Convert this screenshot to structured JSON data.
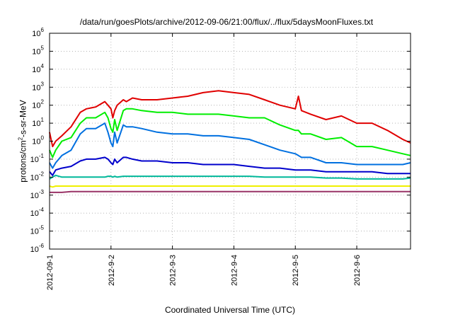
{
  "chart_data": {
    "type": "line",
    "title": "/data/run/goesPlots/archive/2012-09-06/21:00/flux/../flux/5daysMoonFluxes.txt",
    "xlabel": "Coordinated Universal Time (UTC)",
    "ylabel": "protons/cm²-s-sr-MeV",
    "yscale": "log",
    "ylim": [
      -6,
      6
    ],
    "xlim": [
      "2012-09-01",
      "2012-09-06 21:00"
    ],
    "x_ticks": [
      "2012-09-1",
      "2012-9-2",
      "2012-9-3",
      "2012-9-4",
      "2012-9-5",
      "2012-9-6"
    ],
    "y_ticks": [
      "10-6",
      "10-5",
      "10-4",
      "10-3",
      "10-2",
      "10-1",
      "100",
      "101",
      "102",
      "103",
      "104",
      "105",
      "106"
    ],
    "grid": true,
    "x_days": [
      0,
      0.05,
      0.1,
      0.2,
      0.35,
      0.5,
      0.6,
      0.75,
      0.9,
      0.95,
      1.0,
      1.03,
      1.06,
      1.1,
      1.2,
      1.25,
      1.35,
      1.5,
      1.75,
      2.0,
      2.25,
      2.5,
      2.75,
      3.0,
      3.25,
      3.5,
      3.75,
      4.0,
      4.05,
      4.1,
      4.25,
      4.5,
      4.75,
      5.0,
      5.25,
      5.5,
      5.75,
      5.875
    ],
    "series": [
      {
        "color": "#e00000",
        "values": [
          0.5,
          -0.3,
          0.0,
          0.3,
          0.8,
          1.6,
          1.8,
          1.9,
          2.2,
          2.0,
          1.8,
          1.3,
          1.7,
          2.0,
          2.3,
          2.2,
          2.4,
          2.3,
          2.3,
          2.4,
          2.5,
          2.7,
          2.8,
          2.7,
          2.6,
          2.3,
          2.0,
          1.8,
          2.5,
          1.7,
          1.5,
          1.2,
          1.4,
          1.0,
          1.0,
          0.6,
          0.1,
          -0.1
        ]
      },
      {
        "color": "#00ee00",
        "values": [
          -0.5,
          -0.9,
          -0.5,
          0.0,
          0.2,
          1.0,
          1.3,
          1.3,
          1.6,
          1.3,
          0.7,
          0.5,
          1.2,
          0.6,
          1.7,
          1.8,
          1.8,
          1.7,
          1.6,
          1.6,
          1.5,
          1.5,
          1.5,
          1.4,
          1.3,
          1.3,
          0.9,
          0.6,
          0.6,
          0.4,
          0.4,
          0.1,
          0.2,
          -0.3,
          -0.3,
          -0.5,
          -0.7,
          -0.8
        ]
      },
      {
        "color": "#0070e0",
        "values": [
          -1.2,
          -1.5,
          -1.2,
          -0.8,
          -0.5,
          0.4,
          0.7,
          0.7,
          1.0,
          0.5,
          -0.1,
          -0.3,
          0.5,
          -0.1,
          0.9,
          0.8,
          0.8,
          0.7,
          0.5,
          0.4,
          0.4,
          0.3,
          0.3,
          0.2,
          0.1,
          -0.2,
          -0.5,
          -0.7,
          -0.8,
          -0.9,
          -0.9,
          -1.2,
          -1.2,
          -1.3,
          -1.3,
          -1.3,
          -1.3,
          -1.2
        ]
      },
      {
        "color": "#0000cc",
        "values": [
          -1.7,
          -1.9,
          -1.6,
          -1.5,
          -1.4,
          -1.1,
          -1.0,
          -1.0,
          -0.9,
          -1.0,
          -1.2,
          -1.3,
          -1.0,
          -1.2,
          -0.9,
          -0.9,
          -1.0,
          -1.1,
          -1.1,
          -1.2,
          -1.2,
          -1.3,
          -1.3,
          -1.3,
          -1.4,
          -1.5,
          -1.5,
          -1.6,
          -1.6,
          -1.6,
          -1.6,
          -1.7,
          -1.7,
          -1.7,
          -1.7,
          -1.8,
          -1.8,
          -1.8
        ]
      },
      {
        "color": "#00b89a",
        "values": [
          -2.1,
          -2.0,
          -1.9,
          -2.0,
          -2.0,
          -2.0,
          -2.0,
          -2.0,
          -2.0,
          -1.95,
          -1.95,
          -2.0,
          -1.95,
          -2.0,
          -1.95,
          -1.95,
          -1.95,
          -1.95,
          -1.95,
          -1.95,
          -1.95,
          -1.95,
          -1.95,
          -1.95,
          -1.95,
          -2.0,
          -2.0,
          -2.0,
          -2.0,
          -2.0,
          -2.0,
          -2.05,
          -2.05,
          -2.1,
          -2.1,
          -2.1,
          -2.1,
          -2.05
        ]
      },
      {
        "color": "#f0f000",
        "values": [
          -2.5,
          -2.55,
          -2.5,
          -2.5,
          -2.5,
          -2.5,
          -2.5,
          -2.5,
          -2.5,
          -2.5,
          -2.5,
          -2.5,
          -2.5,
          -2.5,
          -2.5,
          -2.5,
          -2.5,
          -2.5,
          -2.5,
          -2.5,
          -2.5,
          -2.5,
          -2.5,
          -2.5,
          -2.5,
          -2.5,
          -2.5,
          -2.5,
          -2.5,
          -2.5,
          -2.5,
          -2.5,
          -2.5,
          -2.5,
          -2.5,
          -2.5,
          -2.5,
          -2.5
        ]
      },
      {
        "color": "#993366",
        "values": [
          -2.85,
          -2.85,
          -2.85,
          -2.85,
          -2.8,
          -2.8,
          -2.8,
          -2.8,
          -2.8,
          -2.8,
          -2.8,
          -2.8,
          -2.8,
          -2.8,
          -2.8,
          -2.8,
          -2.8,
          -2.8,
          -2.8,
          -2.8,
          -2.8,
          -2.8,
          -2.8,
          -2.8,
          -2.8,
          -2.8,
          -2.8,
          -2.8,
          -2.8,
          -2.8,
          -2.8,
          -2.8,
          -2.8,
          -2.8,
          -2.8,
          -2.8,
          -2.8,
          -2.8
        ]
      }
    ]
  }
}
